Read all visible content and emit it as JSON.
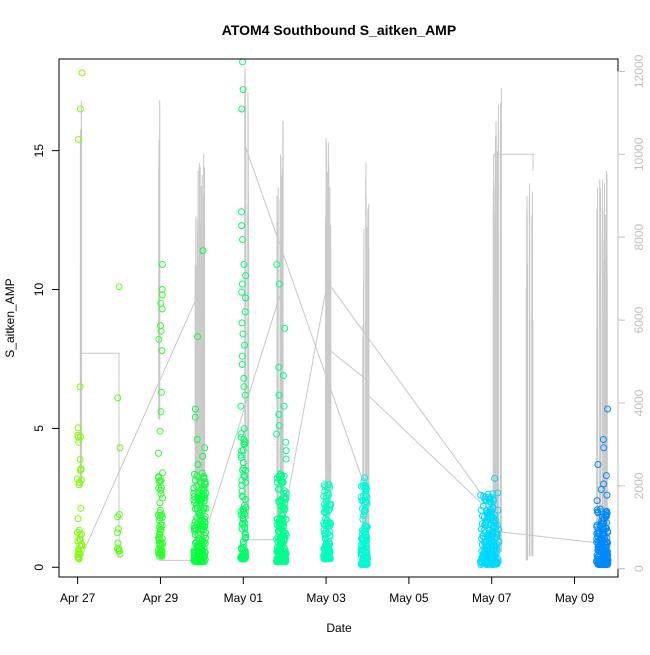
{
  "chart_data": {
    "type": "scatter",
    "title": "ATOM4 Southbound S_aitken_AMP",
    "xlabel": "Date",
    "ylabel": "S_aitken_AMP",
    "x_ticks": [
      "Apr 27",
      "Apr 29",
      "May 01",
      "May 03",
      "May 05",
      "May 07",
      "May 09"
    ],
    "x_tick_days": [
      0,
      2,
      4,
      6,
      8,
      10,
      12
    ],
    "xlim": [
      -0.45,
      13.05
    ],
    "ylim": [
      -0.35,
      18.3
    ],
    "y_ticks": [
      0,
      5,
      10,
      15
    ],
    "y2_ticks": [
      0,
      2000,
      4000,
      6000,
      8000,
      10000,
      12000
    ],
    "y2lim": [
      -200,
      12300
    ],
    "grid": false,
    "legend": "none",
    "colors": {
      "secondary_line": "#c8c8c8",
      "secondary_axis": "#bfbfbf",
      "frame": "#000000",
      "point_gradient": [
        "#7fff00",
        "#00ff44",
        "#00ffcc",
        "#00e5ff",
        "#0088ff"
      ]
    },
    "secondary_series_kind": "line",
    "secondary_spikes": [
      {
        "day": 0.08,
        "y2": [
          2000,
          11300
        ]
      },
      {
        "day": 1.97,
        "y2": [
          3600,
          11300
        ]
      },
      {
        "day": 2.85,
        "y2": [
          700,
          8500
        ]
      },
      {
        "day": 2.9,
        "y2": [
          400,
          9600
        ]
      },
      {
        "day": 2.95,
        "y2": [
          400,
          9800
        ]
      },
      {
        "day": 3.0,
        "y2": [
          300,
          9500
        ]
      },
      {
        "day": 3.05,
        "y2": [
          600,
          10000
        ]
      },
      {
        "day": 4.05,
        "y2": [
          900,
          12100
        ]
      },
      {
        "day": 4.12,
        "y2": [
          1200,
          11500
        ]
      },
      {
        "day": 4.83,
        "y2": [
          300,
          9200
        ]
      },
      {
        "day": 4.9,
        "y2": [
          500,
          10000
        ]
      },
      {
        "day": 4.95,
        "y2": [
          300,
          10800
        ]
      },
      {
        "day": 6.0,
        "y2": [
          400,
          10400
        ]
      },
      {
        "day": 6.05,
        "y2": [
          700,
          10300
        ]
      },
      {
        "day": 6.1,
        "y2": [
          1600,
          9200
        ]
      },
      {
        "day": 6.9,
        "y2": [
          300,
          8200
        ]
      },
      {
        "day": 6.97,
        "y2": [
          200,
          9800
        ]
      },
      {
        "day": 7.02,
        "y2": [
          600,
          8800
        ]
      },
      {
        "day": 10.05,
        "y2": [
          200,
          10000
        ]
      },
      {
        "day": 10.1,
        "y2": [
          200,
          10800
        ]
      },
      {
        "day": 10.15,
        "y2": [
          300,
          11200
        ]
      },
      {
        "day": 10.22,
        "y2": [
          400,
          11600
        ]
      },
      {
        "day": 10.85,
        "y2": [
          200,
          9000
        ]
      },
      {
        "day": 10.92,
        "y2": [
          300,
          9300
        ]
      },
      {
        "day": 10.98,
        "y2": [
          300,
          9100
        ]
      },
      {
        "day": 12.55,
        "y2": [
          200,
          9200
        ]
      },
      {
        "day": 12.62,
        "y2": [
          300,
          9400
        ]
      },
      {
        "day": 12.68,
        "y2": [
          200,
          9400
        ]
      },
      {
        "day": 12.73,
        "y2": [
          300,
          9300
        ]
      },
      {
        "day": 12.78,
        "y2": [
          700,
          9600
        ]
      }
    ],
    "secondary_connectors": [
      [
        [
          0.05,
          5200
        ],
        [
          1.0,
          5200
        ],
        [
          1.0,
          300
        ]
      ],
      [
        [
          0.05,
          200
        ],
        [
          2.9,
          6600
        ]
      ],
      [
        [
          1.97,
          200
        ],
        [
          3.0,
          200
        ]
      ],
      [
        [
          3.0,
          600
        ],
        [
          4.95,
          6800
        ]
      ],
      [
        [
          4.05,
          10200
        ],
        [
          7.0,
          1800
        ]
      ],
      [
        [
          4.05,
          700
        ],
        [
          5.0,
          700
        ]
      ],
      [
        [
          4.9,
          800
        ],
        [
          6.05,
          7000
        ]
      ],
      [
        [
          6.05,
          5300
        ],
        [
          7.05,
          4500
        ]
      ],
      [
        [
          6.05,
          6900
        ],
        [
          9.9,
          1600
        ]
      ],
      [
        [
          7.0,
          4200
        ],
        [
          10.15,
          1200
        ]
      ],
      [
        [
          10.05,
          10000
        ],
        [
          10.25,
          10000
        ],
        [
          11.0,
          10000
        ],
        [
          11.0,
          9600
        ]
      ],
      [
        [
          10.1,
          900
        ],
        [
          12.75,
          600
        ]
      ]
    ],
    "clusters": [
      {
        "day": 0.05,
        "spread": 0.06,
        "count": 35,
        "range": [
          0.3,
          5.2
        ],
        "extra": [
          17.8,
          16.5,
          15.4,
          6.5,
          4.5,
          3.5
        ]
      },
      {
        "day": 1.0,
        "spread": 0.04,
        "count": 10,
        "range": [
          0.4,
          2.0
        ],
        "extra": [
          10.1,
          6.1,
          4.3
        ]
      },
      {
        "day": 2.0,
        "spread": 0.05,
        "count": 55,
        "range": [
          0.4,
          3.5
        ],
        "extra": [
          10.9,
          10.0,
          9.8,
          9.5,
          9.3,
          8.7,
          8.5,
          8.2,
          7.8,
          6.3,
          5.6,
          4.9,
          4.1
        ]
      },
      {
        "day": 2.95,
        "spread": 0.15,
        "count": 160,
        "range": [
          0.2,
          3.4
        ],
        "extra": [
          11.4,
          8.3,
          5.7,
          5.4,
          4.6,
          4.3,
          4.0,
          3.7
        ]
      },
      {
        "day": 4.0,
        "spread": 0.06,
        "count": 80,
        "range": [
          0.3,
          5.0
        ],
        "extra": [
          18.2,
          17.2,
          16.5,
          12.8,
          12.3,
          11.8,
          10.9,
          10.5,
          10.2,
          9.9,
          9.7,
          9.2,
          8.8,
          8.4,
          8.0,
          7.6,
          7.3,
          6.8,
          6.5,
          6.2,
          5.8
        ]
      },
      {
        "day": 4.92,
        "spread": 0.12,
        "count": 160,
        "range": [
          0.2,
          3.5
        ],
        "extra": [
          10.9,
          10.2,
          8.6,
          7.2,
          6.9,
          6.2,
          5.8,
          5.5,
          5.1,
          4.8,
          4.5,
          4.2,
          3.9
        ]
      },
      {
        "day": 6.03,
        "spread": 0.09,
        "count": 110,
        "range": [
          0.3,
          3.0
        ]
      },
      {
        "day": 6.92,
        "spread": 0.08,
        "count": 110,
        "range": [
          0.1,
          3.3
        ]
      },
      {
        "day": 9.95,
        "spread": 0.22,
        "count": 170,
        "range": [
          0.1,
          2.7
        ]
      },
      {
        "day": 10.0,
        "spread": 0.07,
        "count": 60,
        "range": [
          0.2,
          2.5
        ],
        "extra": [
          3.2
        ]
      },
      {
        "day": 12.67,
        "spread": 0.14,
        "count": 170,
        "range": [
          0.1,
          2.1
        ],
        "extra": [
          5.7,
          4.6,
          4.3,
          3.7,
          3.3,
          3.0,
          2.8,
          2.6,
          2.4
        ]
      }
    ]
  }
}
